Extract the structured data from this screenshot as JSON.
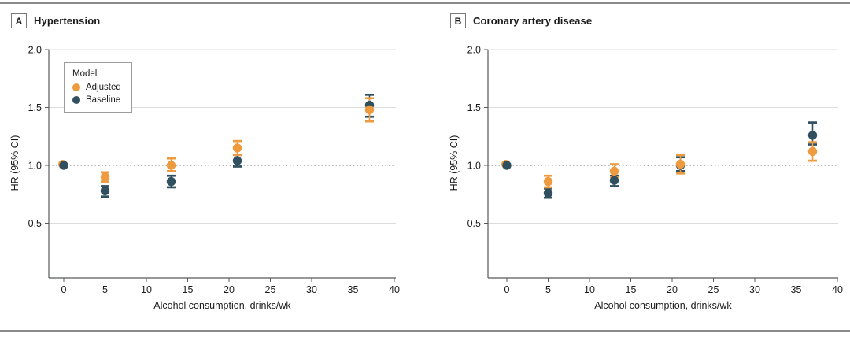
{
  "figure": {
    "panels": [
      {
        "tag": "A",
        "title": "Hypertension"
      },
      {
        "tag": "B",
        "title": "Coronary artery disease"
      }
    ],
    "legend": {
      "title": "Model",
      "entries": [
        {
          "label": "Adjusted",
          "color": "#ee9b40"
        },
        {
          "label": "Baseline",
          "color": "#31505f"
        }
      ]
    },
    "colors": {
      "adjusted": "#ee9b40",
      "baseline": "#31505f",
      "gridline": "#dcdcdc",
      "reference_line": "#8f8f8f",
      "axis": "#58595b",
      "text": "#1a1a1a"
    }
  },
  "chart_data": [
    {
      "type": "scatter",
      "panel": "A",
      "title": "Hypertension",
      "xlabel": "Alcohol consumption, drinks/wk",
      "ylabel": "HR (95% CI)",
      "x_ticks": [
        0,
        5,
        10,
        15,
        20,
        25,
        30,
        35,
        40
      ],
      "y_ticks": [
        0.5,
        1.0,
        1.5,
        2.0
      ],
      "xlim": [
        -2,
        41
      ],
      "ylim": [
        0,
        2.0
      ],
      "reference_line_y": 1.0,
      "grid": true,
      "legend_position": "upper-left",
      "series": [
        {
          "name": "Baseline",
          "color": "#31505f",
          "points": [
            {
              "x": 0,
              "hr": 1.0,
              "lo": 1.0,
              "hi": 1.0
            },
            {
              "x": 5,
              "hr": 0.78,
              "lo": 0.73,
              "hi": 0.82
            },
            {
              "x": 13,
              "hr": 0.86,
              "lo": 0.81,
              "hi": 0.91
            },
            {
              "x": 21,
              "hr": 1.04,
              "lo": 0.99,
              "hi": 1.09
            },
            {
              "x": 37,
              "hr": 1.52,
              "lo": 1.42,
              "hi": 1.61
            }
          ]
        },
        {
          "name": "Adjusted",
          "color": "#ee9b40",
          "points": [
            {
              "x": 0,
              "hr": 1.0,
              "lo": 1.0,
              "hi": 1.0
            },
            {
              "x": 5,
              "hr": 0.9,
              "lo": 0.86,
              "hi": 0.94
            },
            {
              "x": 13,
              "hr": 1.0,
              "lo": 0.95,
              "hi": 1.06
            },
            {
              "x": 21,
              "hr": 1.15,
              "lo": 1.09,
              "hi": 1.21
            },
            {
              "x": 37,
              "hr": 1.48,
              "lo": 1.38,
              "hi": 1.58
            }
          ]
        }
      ]
    },
    {
      "type": "scatter",
      "panel": "B",
      "title": "Coronary artery disease",
      "xlabel": "Alcohol consumption, drinks/wk",
      "ylabel": "HR (95% CI)",
      "x_ticks": [
        0,
        5,
        10,
        15,
        20,
        25,
        30,
        35,
        40
      ],
      "y_ticks": [
        0.5,
        1.0,
        1.5,
        2.0
      ],
      "xlim": [
        -2,
        41
      ],
      "ylim": [
        0,
        2.0
      ],
      "reference_line_y": 1.0,
      "grid": true,
      "legend_position": "none",
      "series": [
        {
          "name": "Baseline",
          "color": "#31505f",
          "points": [
            {
              "x": 0,
              "hr": 1.0,
              "lo": 1.0,
              "hi": 1.0
            },
            {
              "x": 5,
              "hr": 0.76,
              "lo": 0.72,
              "hi": 0.8
            },
            {
              "x": 13,
              "hr": 0.87,
              "lo": 0.82,
              "hi": 0.91
            },
            {
              "x": 21,
              "hr": 1.0,
              "lo": 0.95,
              "hi": 1.07
            },
            {
              "x": 37,
              "hr": 1.26,
              "lo": 1.18,
              "hi": 1.37
            }
          ]
        },
        {
          "name": "Adjusted",
          "color": "#ee9b40",
          "points": [
            {
              "x": 0,
              "hr": 1.0,
              "lo": 1.0,
              "hi": 1.0
            },
            {
              "x": 5,
              "hr": 0.86,
              "lo": 0.81,
              "hi": 0.91
            },
            {
              "x": 13,
              "hr": 0.95,
              "lo": 0.9,
              "hi": 1.01
            },
            {
              "x": 21,
              "hr": 1.01,
              "lo": 0.93,
              "hi": 1.09
            },
            {
              "x": 37,
              "hr": 1.12,
              "lo": 1.04,
              "hi": 1.2
            }
          ]
        }
      ]
    }
  ]
}
